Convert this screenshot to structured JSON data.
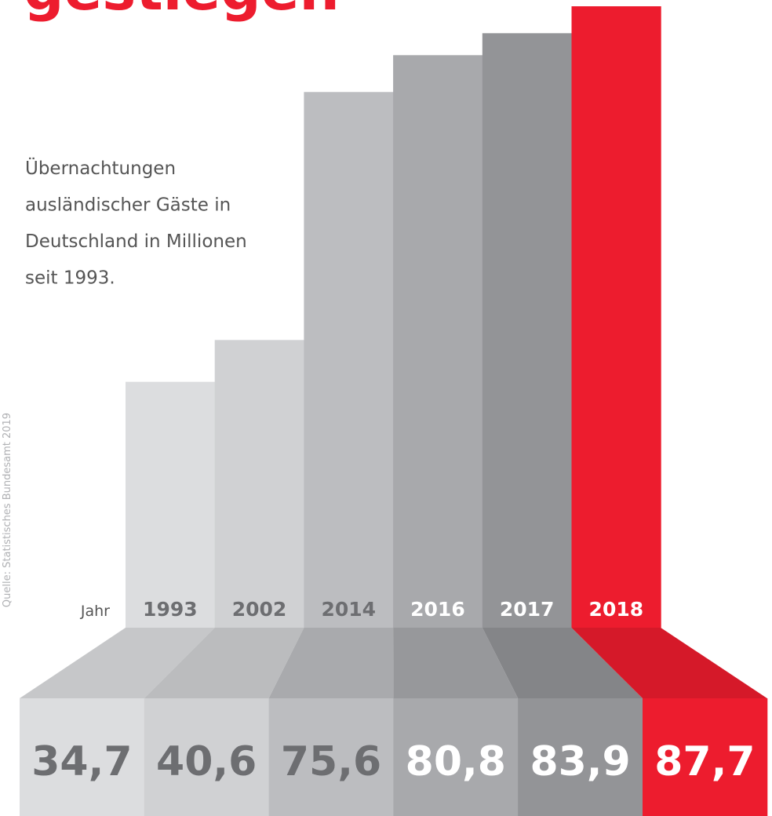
{
  "chart_data": {
    "type": "bar",
    "title": "gestiegen",
    "subtitle": [
      "Übernachtungen",
      "ausländischer Gäste in",
      "Deutschland in Millionen",
      "seit 1993."
    ],
    "source": "Quelle: Statistisches Bundesamt 2019",
    "category_label": "Jahr",
    "categories": [
      "1993",
      "2002",
      "2014",
      "2016",
      "2017",
      "2018"
    ],
    "values": [
      34.7,
      40.6,
      75.6,
      80.8,
      83.9,
      87.7
    ],
    "value_labels": [
      "34,7",
      "40,6",
      "75,6",
      "80,8",
      "83,9",
      "87,7"
    ],
    "colors": [
      "#dcdddf",
      "#d0d1d3",
      "#bcbdc0",
      "#a8a9ac",
      "#939497",
      "#ed1c2e"
    ],
    "ylim": [
      0,
      87.7
    ]
  }
}
